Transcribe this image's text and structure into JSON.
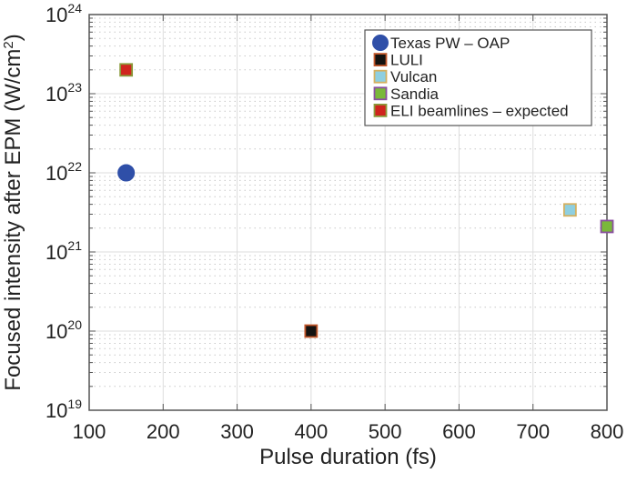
{
  "chart_data": {
    "type": "scatter",
    "title": "",
    "xlabel": "Pulse duration (fs)",
    "ylabel": "Focused intensity after EPM (W/cm",
    "ylabel_sup": "2",
    "ylabel_end": ")",
    "xlim": [
      100,
      800
    ],
    "ylim": [
      1e+19,
      1e+24
    ],
    "yscale": "log",
    "grid": true,
    "legend_position": "top-right",
    "x_ticks": [
      "100",
      "200",
      "300",
      "400",
      "500",
      "600",
      "700",
      "800"
    ],
    "x_tick_values": [
      100,
      200,
      300,
      400,
      500,
      600,
      700,
      800
    ],
    "y_ticks": [
      {
        "base": "10",
        "exp": "19",
        "value": 1e+19
      },
      {
        "base": "10",
        "exp": "20",
        "value": 1e+20
      },
      {
        "base": "10",
        "exp": "21",
        "value": 1e+21
      },
      {
        "base": "10",
        "exp": "22",
        "value": 1e+22
      },
      {
        "base": "10",
        "exp": "23",
        "value": 1e+23
      },
      {
        "base": "10",
        "exp": "24",
        "value": 1e+24
      }
    ],
    "series": [
      {
        "name": "Texas PW – OAP",
        "marker": "circle",
        "fill": "#2f4fa8",
        "edge": "#2f4fa8",
        "x": [
          150
        ],
        "y": [
          1e+22
        ]
      },
      {
        "name": "LULI",
        "marker": "square",
        "fill": "#141210",
        "edge": "#c0562a",
        "x": [
          400
        ],
        "y": [
          1e+20
        ]
      },
      {
        "name": "Vulcan",
        "marker": "square",
        "fill": "#8ecfe0",
        "edge": "#d4b060",
        "x": [
          750
        ],
        "y": [
          3.4e+21
        ]
      },
      {
        "name": "Sandia",
        "marker": "square",
        "fill": "#7ab83a",
        "edge": "#8a4fa0",
        "x": [
          800
        ],
        "y": [
          2.1e+21
        ]
      },
      {
        "name": "ELI beamlines – expected",
        "marker": "square",
        "fill": "#d0251e",
        "edge": "#8a9a3a",
        "x": [
          150
        ],
        "y": [
          2e+23
        ]
      }
    ]
  }
}
